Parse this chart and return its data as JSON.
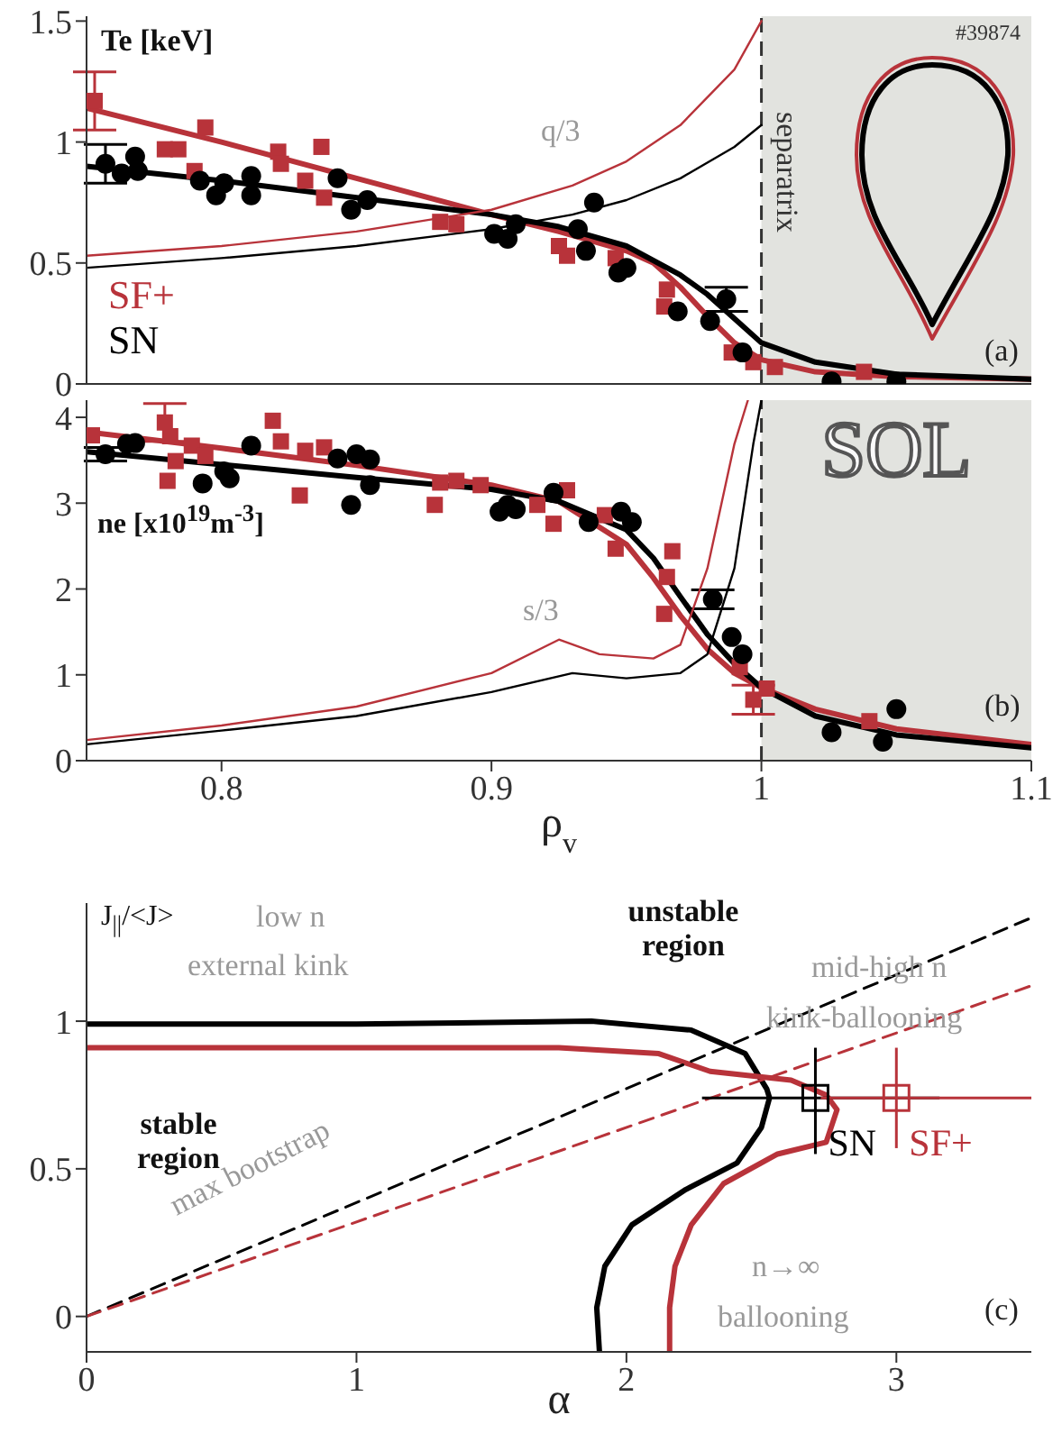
{
  "chart_data": [
    {
      "type": "line",
      "ylabel": "Te [keV]",
      "xlim": [
        0.75,
        1.1
      ],
      "xticks": [
        0.8,
        0.9,
        1,
        1.1
      ],
      "ylim": [
        0,
        1.52
      ],
      "yticks": [
        0,
        0.5,
        1,
        1.5
      ],
      "tick_labels": "y",
      "legend": "bottom left",
      "ref_lines": [
        {
          "axis": "x",
          "value": 1,
          "label": "separatrix",
          "color": "#333333",
          "line_style": "dashed"
        }
      ],
      "bands": [
        {
          "axis": "x",
          "from": 1,
          "to": 1.1,
          "color": "#e2e3df"
        }
      ],
      "annotations": [
        "#39874",
        "q/3",
        "(a)"
      ],
      "series": [
        {
          "name": "SF+",
          "type": "scatter",
          "marker": "square",
          "color": "#b8333a",
          "x": [
            0.753,
            0.779,
            0.784,
            0.79,
            0.794,
            0.821,
            0.822,
            0.831,
            0.837,
            0.838,
            0.881,
            0.887,
            0.925,
            0.928,
            0.946,
            0.964,
            0.965,
            0.989,
            0.997,
            1.005,
            1.038
          ],
          "values": [
            1.17,
            0.97,
            0.97,
            0.88,
            1.06,
            0.96,
            0.91,
            0.84,
            0.98,
            0.77,
            0.67,
            0.66,
            0.57,
            0.53,
            0.52,
            0.32,
            0.39,
            0.13,
            0.09,
            0.07,
            0.05
          ],
          "errors": [
            0.12,
            null,
            null,
            null,
            null,
            null,
            null,
            null,
            null,
            null,
            null,
            null,
            null,
            null,
            null,
            null,
            null,
            null,
            null,
            null,
            null
          ]
        },
        {
          "name": "SN",
          "type": "scatter",
          "marker": "circle",
          "color": "#000000",
          "x": [
            0.757,
            0.763,
            0.768,
            0.769,
            0.792,
            0.798,
            0.801,
            0.811,
            0.811,
            0.843,
            0.848,
            0.854,
            0.901,
            0.906,
            0.909,
            0.932,
            0.935,
            0.938,
            0.947,
            0.95,
            0.969,
            0.981,
            0.987,
            0.993,
            1.026,
            1.05
          ],
          "values": [
            0.91,
            0.87,
            0.94,
            0.88,
            0.84,
            0.78,
            0.83,
            0.86,
            0.78,
            0.85,
            0.72,
            0.76,
            0.62,
            0.6,
            0.66,
            0.64,
            0.55,
            0.75,
            0.46,
            0.48,
            0.3,
            0.26,
            0.35,
            0.13,
            0.01,
            0.01
          ],
          "errors": [
            0.08,
            null,
            null,
            null,
            null,
            null,
            null,
            null,
            null,
            null,
            null,
            null,
            null,
            null,
            null,
            null,
            null,
            null,
            null,
            null,
            null,
            null,
            0.05,
            null,
            null,
            null
          ]
        },
        {
          "marker": "none",
          "line_style": "solid",
          "color": "#b8333a",
          "x": [
            0.75,
            0.8,
            0.85,
            0.9,
            0.925,
            0.95,
            0.96,
            0.97,
            0.98,
            0.99,
            1.0,
            1.02,
            1.05,
            1.1
          ],
          "values": [
            1.14,
            1.0,
            0.85,
            0.7,
            0.63,
            0.55,
            0.5,
            0.4,
            0.28,
            0.17,
            0.1,
            0.05,
            0.03,
            0.02
          ]
        },
        {
          "marker": "none",
          "line_style": "solid",
          "color": "#000000",
          "x": [
            0.75,
            0.8,
            0.85,
            0.9,
            0.925,
            0.95,
            0.97,
            0.98,
            0.99,
            1.0,
            1.02,
            1.05,
            1.1
          ],
          "values": [
            0.9,
            0.84,
            0.77,
            0.7,
            0.65,
            0.57,
            0.45,
            0.37,
            0.27,
            0.17,
            0.09,
            0.04,
            0.02
          ]
        },
        {
          "marker": "none",
          "line_style": "solid",
          "color": "#b8333a",
          "x": [
            0.75,
            0.8,
            0.85,
            0.9,
            0.93,
            0.95,
            0.97,
            0.99,
            1.0
          ],
          "values": [
            0.53,
            0.57,
            0.63,
            0.72,
            0.82,
            0.92,
            1.07,
            1.3,
            1.5
          ]
        },
        {
          "marker": "none",
          "line_style": "solid",
          "color": "#000000",
          "x": [
            0.75,
            0.8,
            0.85,
            0.9,
            0.93,
            0.95,
            0.97,
            0.99,
            1.0
          ],
          "values": [
            0.48,
            0.52,
            0.57,
            0.64,
            0.7,
            0.76,
            0.85,
            0.98,
            1.07
          ]
        }
      ]
    },
    {
      "type": "line",
      "ylabel": "ne [x10$^{19}$m$^{-3}$]",
      "xlabel": "ρ$_{v}$",
      "xlim": [
        0.75,
        1.1
      ],
      "xticks": [
        0.8,
        0.9,
        1,
        1.1
      ],
      "ylim": [
        0,
        4.2
      ],
      "yticks": [
        0,
        1,
        2,
        3,
        4
      ],
      "legend": false,
      "ref_lines": [
        {
          "axis": "x",
          "value": 1,
          "color": "#333333",
          "line_style": "dashed"
        }
      ],
      "bands": [
        {
          "axis": "x",
          "from": 1,
          "to": 1.1,
          "label": "SOL",
          "color": "#e2e3df"
        }
      ],
      "annotations": [
        "s/3",
        "(b)"
      ],
      "series": [
        {
          "type": "scatter",
          "marker": "square",
          "color": "#b8333a",
          "x": [
            0.752,
            0.779,
            0.781,
            0.78,
            0.783,
            0.789,
            0.794,
            0.819,
            0.822,
            0.829,
            0.831,
            0.838,
            0.879,
            0.881,
            0.887,
            0.896,
            0.917,
            0.923,
            0.928,
            0.942,
            0.946,
            0.964,
            0.965,
            0.967,
            0.992,
            0.997,
            1.002,
            1.04
          ],
          "values": [
            3.79,
            3.94,
            3.78,
            3.26,
            3.49,
            3.67,
            3.55,
            3.96,
            3.72,
            3.09,
            3.61,
            3.65,
            2.98,
            3.24,
            3.26,
            3.21,
            2.98,
            2.76,
            3.15,
            2.86,
            2.47,
            1.71,
            2.14,
            2.44,
            1.09,
            0.71,
            0.84,
            0.46
          ],
          "errors": [
            null,
            0.22,
            null,
            null,
            null,
            null,
            null,
            null,
            null,
            null,
            null,
            null,
            null,
            null,
            null,
            null,
            null,
            null,
            null,
            null,
            null,
            null,
            null,
            null,
            null,
            0.17,
            null,
            null
          ]
        },
        {
          "type": "scatter",
          "marker": "circle",
          "color": "#000000",
          "x": [
            0.757,
            0.765,
            0.768,
            0.793,
            0.801,
            0.803,
            0.811,
            0.843,
            0.848,
            0.85,
            0.855,
            0.855,
            0.903,
            0.906,
            0.909,
            0.923,
            0.936,
            0.948,
            0.952,
            0.982,
            0.989,
            0.993,
            1.026,
            1.045,
            1.05
          ],
          "values": [
            3.57,
            3.69,
            3.7,
            3.23,
            3.37,
            3.29,
            3.67,
            3.52,
            2.98,
            3.57,
            3.51,
            3.21,
            2.9,
            2.98,
            2.93,
            3.12,
            2.78,
            2.9,
            2.78,
            1.88,
            1.44,
            1.24,
            0.33,
            0.22,
            0.6
          ],
          "errors": [
            0.08,
            null,
            null,
            null,
            null,
            null,
            null,
            null,
            null,
            null,
            null,
            null,
            null,
            null,
            null,
            null,
            null,
            null,
            null,
            0.11,
            null,
            null,
            null,
            null,
            null
          ]
        },
        {
          "marker": "none",
          "line_style": "solid",
          "color": "#b8333a",
          "x": [
            0.75,
            0.8,
            0.85,
            0.9,
            0.925,
            0.95,
            0.96,
            0.97,
            0.98,
            0.99,
            1.0,
            1.02,
            1.05,
            1.1
          ],
          "values": [
            3.83,
            3.64,
            3.44,
            3.21,
            3.02,
            2.52,
            2.13,
            1.69,
            1.3,
            1.02,
            0.85,
            0.6,
            0.37,
            0.19
          ]
        },
        {
          "marker": "none",
          "line_style": "solid",
          "color": "#000000",
          "x": [
            0.75,
            0.8,
            0.85,
            0.9,
            0.925,
            0.95,
            0.96,
            0.97,
            0.98,
            0.99,
            1.0,
            1.02,
            1.05,
            1.1
          ],
          "values": [
            3.6,
            3.45,
            3.3,
            3.16,
            3.02,
            2.69,
            2.36,
            1.91,
            1.47,
            1.13,
            0.85,
            0.52,
            0.3,
            0.15
          ]
        },
        {
          "marker": "none",
          "line_style": "solid",
          "color": "#b8333a",
          "x": [
            0.75,
            0.8,
            0.85,
            0.9,
            0.925,
            0.94,
            0.96,
            0.97,
            0.98,
            0.99,
            0.995
          ],
          "values": [
            0.24,
            0.41,
            0.63,
            1.02,
            1.41,
            1.24,
            1.19,
            1.35,
            2.24,
            3.69,
            4.2
          ]
        },
        {
          "marker": "none",
          "line_style": "solid",
          "color": "#000000",
          "x": [
            0.75,
            0.8,
            0.85,
            0.9,
            0.93,
            0.95,
            0.97,
            0.98,
            0.99,
            0.997,
            1.0
          ],
          "values": [
            0.19,
            0.35,
            0.52,
            0.8,
            1.02,
            0.96,
            1.02,
            1.24,
            2.24,
            3.69,
            4.2
          ]
        }
      ]
    },
    {
      "type": "line",
      "ylabel": "J$_{||}$/<J>",
      "xlabel": "α",
      "xlim": [
        0,
        3.5
      ],
      "xticks": [
        0,
        1,
        2,
        3
      ],
      "ylim": [
        -0.12,
        1.4
      ],
      "yticks": [
        0,
        0.5,
        1
      ],
      "legend": false,
      "annotations": [
        "low n",
        "external kink",
        "unstable region",
        "stable region",
        "mid-high n",
        "kink-ballooning",
        "max bootstrap",
        "n→∞",
        "ballooning",
        "(c)"
      ],
      "series": [
        {
          "marker": "none",
          "line_style": "solid",
          "color": "#000000",
          "x": [
            0,
            1.0,
            1.87,
            2.24,
            2.44,
            2.52,
            2.53,
            2.5,
            2.41,
            2.22,
            2.02,
            1.92,
            1.89,
            1.9
          ],
          "values": [
            0.99,
            0.99,
            1.0,
            0.97,
            0.89,
            0.77,
            0.74,
            0.64,
            0.52,
            0.43,
            0.31,
            0.17,
            0.03,
            -0.12
          ]
        },
        {
          "marker": "none",
          "line_style": "solid",
          "color": "#b8333a",
          "x": [
            0,
            1.0,
            1.75,
            2.12,
            2.31,
            2.61,
            2.74,
            2.78,
            2.74,
            2.56,
            2.36,
            2.24,
            2.18,
            2.16,
            2.16
          ],
          "values": [
            0.91,
            0.91,
            0.91,
            0.89,
            0.83,
            0.8,
            0.75,
            0.7,
            0.59,
            0.55,
            0.45,
            0.31,
            0.17,
            0.03,
            -0.12
          ]
        },
        {
          "marker": "none",
          "line_style": "dashed",
          "color": "#000000",
          "x": [
            0,
            3.5
          ],
          "values": [
            0,
            1.35
          ]
        },
        {
          "marker": "none",
          "line_style": "dashed",
          "color": "#b8333a",
          "x": [
            0,
            3.5
          ],
          "values": [
            0,
            1.12
          ]
        },
        {
          "name": "SN",
          "type": "scatter",
          "marker": "square",
          "color": "#000000",
          "x": [
            2.7
          ],
          "values": [
            0.74
          ],
          "errors": [
            [
              0.55,
              0.91
            ]
          ],
          "xerrors": [
            [
              2.28,
              3.16
            ]
          ]
        },
        {
          "name": "SF+",
          "type": "scatter",
          "marker": "square",
          "color": "#b8333a",
          "x": [
            3.0
          ],
          "values": [
            0.74
          ],
          "errors": [
            [
              0.57,
              0.91
            ]
          ],
          "xerrors": [
            [
              2.72,
              3.5
            ]
          ]
        }
      ]
    }
  ]
}
